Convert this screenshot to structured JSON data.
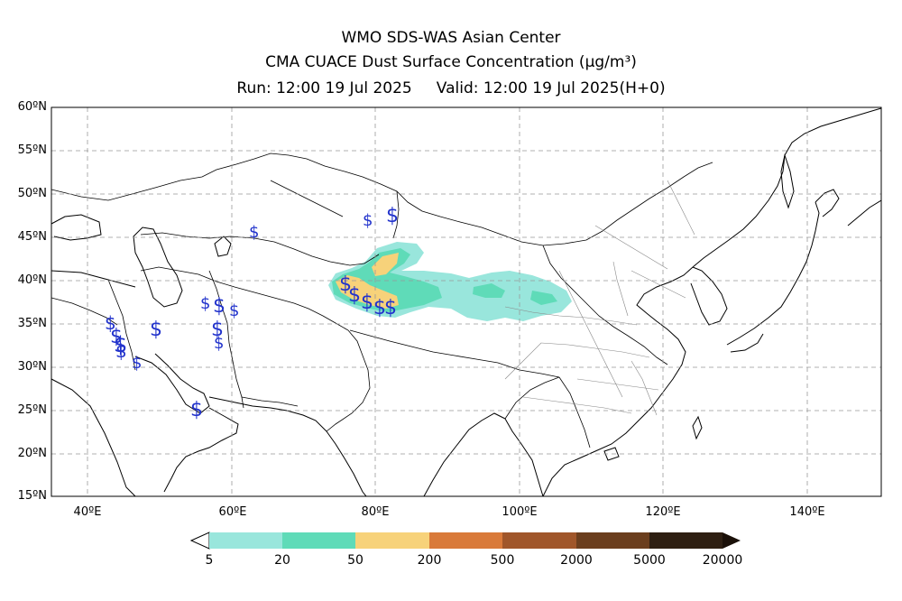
{
  "title": {
    "line1": "WMO SDS-WAS Asian Center",
    "line2": "CMA CUACE Dust Surface Concentration (μg/m³)",
    "line3_run": "Run: 12:00 19 Jul 2025",
    "line3_valid": "Valid: 12:00 19 Jul 2025(H+0)"
  },
  "map": {
    "lat_labels": [
      "60ºN",
      "55ºN",
      "50ºN",
      "45ºN",
      "40ºN",
      "35ºN",
      "30ºN",
      "25ºN",
      "20ºN",
      "15ºN"
    ],
    "lon_labels": [
      "40ºE",
      "60ºE",
      "80ºE",
      "100ºE",
      "120ºE",
      "140ºE"
    ],
    "lat_range": [
      15,
      60
    ],
    "lon_range": [
      35,
      150
    ],
    "grid": true,
    "station_symbol": "$",
    "dust_colors": {
      "c5": "#99e6dc",
      "c20": "#5fdbb8",
      "c50": "#f7d27a"
    }
  },
  "colorbar": {
    "labels": [
      "5",
      "20",
      "50",
      "200",
      "500",
      "2000",
      "5000",
      "20000"
    ],
    "colors": [
      "#99e6dc",
      "#5fdbb8",
      "#f7d27a",
      "#d97a3a",
      "#a0562a",
      "#6b3e1e",
      "#2e1f12"
    ]
  }
}
